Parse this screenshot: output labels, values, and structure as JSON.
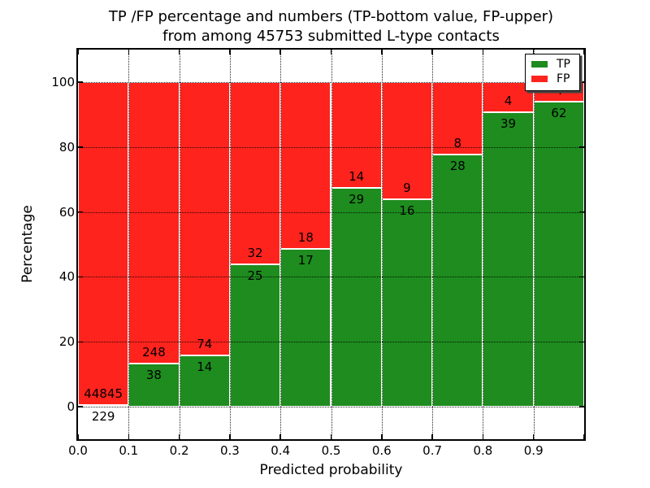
{
  "title_lines": {
    "line1": "TP /FP percentage and numbers (TP-bottom value, FP-upper)",
    "line2": "from among 45753 submitted L-type contacts"
  },
  "colors": {
    "tp_green": "#1e8c1e",
    "fp_red": "#ff231d",
    "background": "#ffffff",
    "frame": "#000000",
    "legend_shadow": "#444444"
  },
  "chart_data": {
    "type": "bar",
    "stacked": true,
    "title": "TP /FP percentage and numbers (TP-bottom value, FP-upper) from among 45753 submitted L-type contacts",
    "xlabel": "Predicted probability",
    "ylabel": "Percentage",
    "xlim": [
      0.0,
      1.0
    ],
    "ylim": [
      -10,
      110
    ],
    "x_tick_labels": [
      "0.0",
      "0.1",
      "0.2",
      "0.3",
      "0.4",
      "0.5",
      "0.6",
      "0.7",
      "0.8",
      "0.9"
    ],
    "y_tick_values": [
      0,
      20,
      40,
      60,
      80,
      100
    ],
    "grid": "dotted black, both axes",
    "total_submitted": 45753,
    "legend": {
      "position": "upper right",
      "entries": [
        {
          "label": "TP",
          "color": "#1e8c1e"
        },
        {
          "label": "FP",
          "color": "#ff231d"
        }
      ]
    },
    "bars": [
      {
        "range": [
          0.0,
          0.1
        ],
        "tp": 229,
        "fp": 44845,
        "tp_percent": 0.51,
        "fp_label_hidden": false
      },
      {
        "range": [
          0.1,
          0.2
        ],
        "tp": 38,
        "fp": 248,
        "tp_percent": 13.29,
        "fp_label_hidden": false
      },
      {
        "range": [
          0.2,
          0.3
        ],
        "tp": 14,
        "fp": 74,
        "tp_percent": 15.91,
        "fp_label_hidden": false
      },
      {
        "range": [
          0.3,
          0.4
        ],
        "tp": 25,
        "fp": 32,
        "tp_percent": 43.86,
        "fp_label_hidden": false
      },
      {
        "range": [
          0.4,
          0.5
        ],
        "tp": 17,
        "fp": 18,
        "tp_percent": 48.57,
        "fp_label_hidden": false
      },
      {
        "range": [
          0.5,
          0.6
        ],
        "tp": 29,
        "fp": 14,
        "tp_percent": 67.44,
        "fp_label_hidden": false
      },
      {
        "range": [
          0.6,
          0.7
        ],
        "tp": 16,
        "fp": 9,
        "tp_percent": 64.0,
        "fp_label_hidden": false
      },
      {
        "range": [
          0.7,
          0.8
        ],
        "tp": 28,
        "fp": 8,
        "tp_percent": 77.78,
        "fp_label_hidden": false
      },
      {
        "range": [
          0.8,
          0.9
        ],
        "tp": 39,
        "fp": 4,
        "tp_percent": 90.7,
        "fp_label_hidden": false
      },
      {
        "range": [
          0.9,
          1.0
        ],
        "tp": 62,
        "fp": 4,
        "tp_percent": 93.94,
        "fp_label_hidden": true
      }
    ]
  }
}
